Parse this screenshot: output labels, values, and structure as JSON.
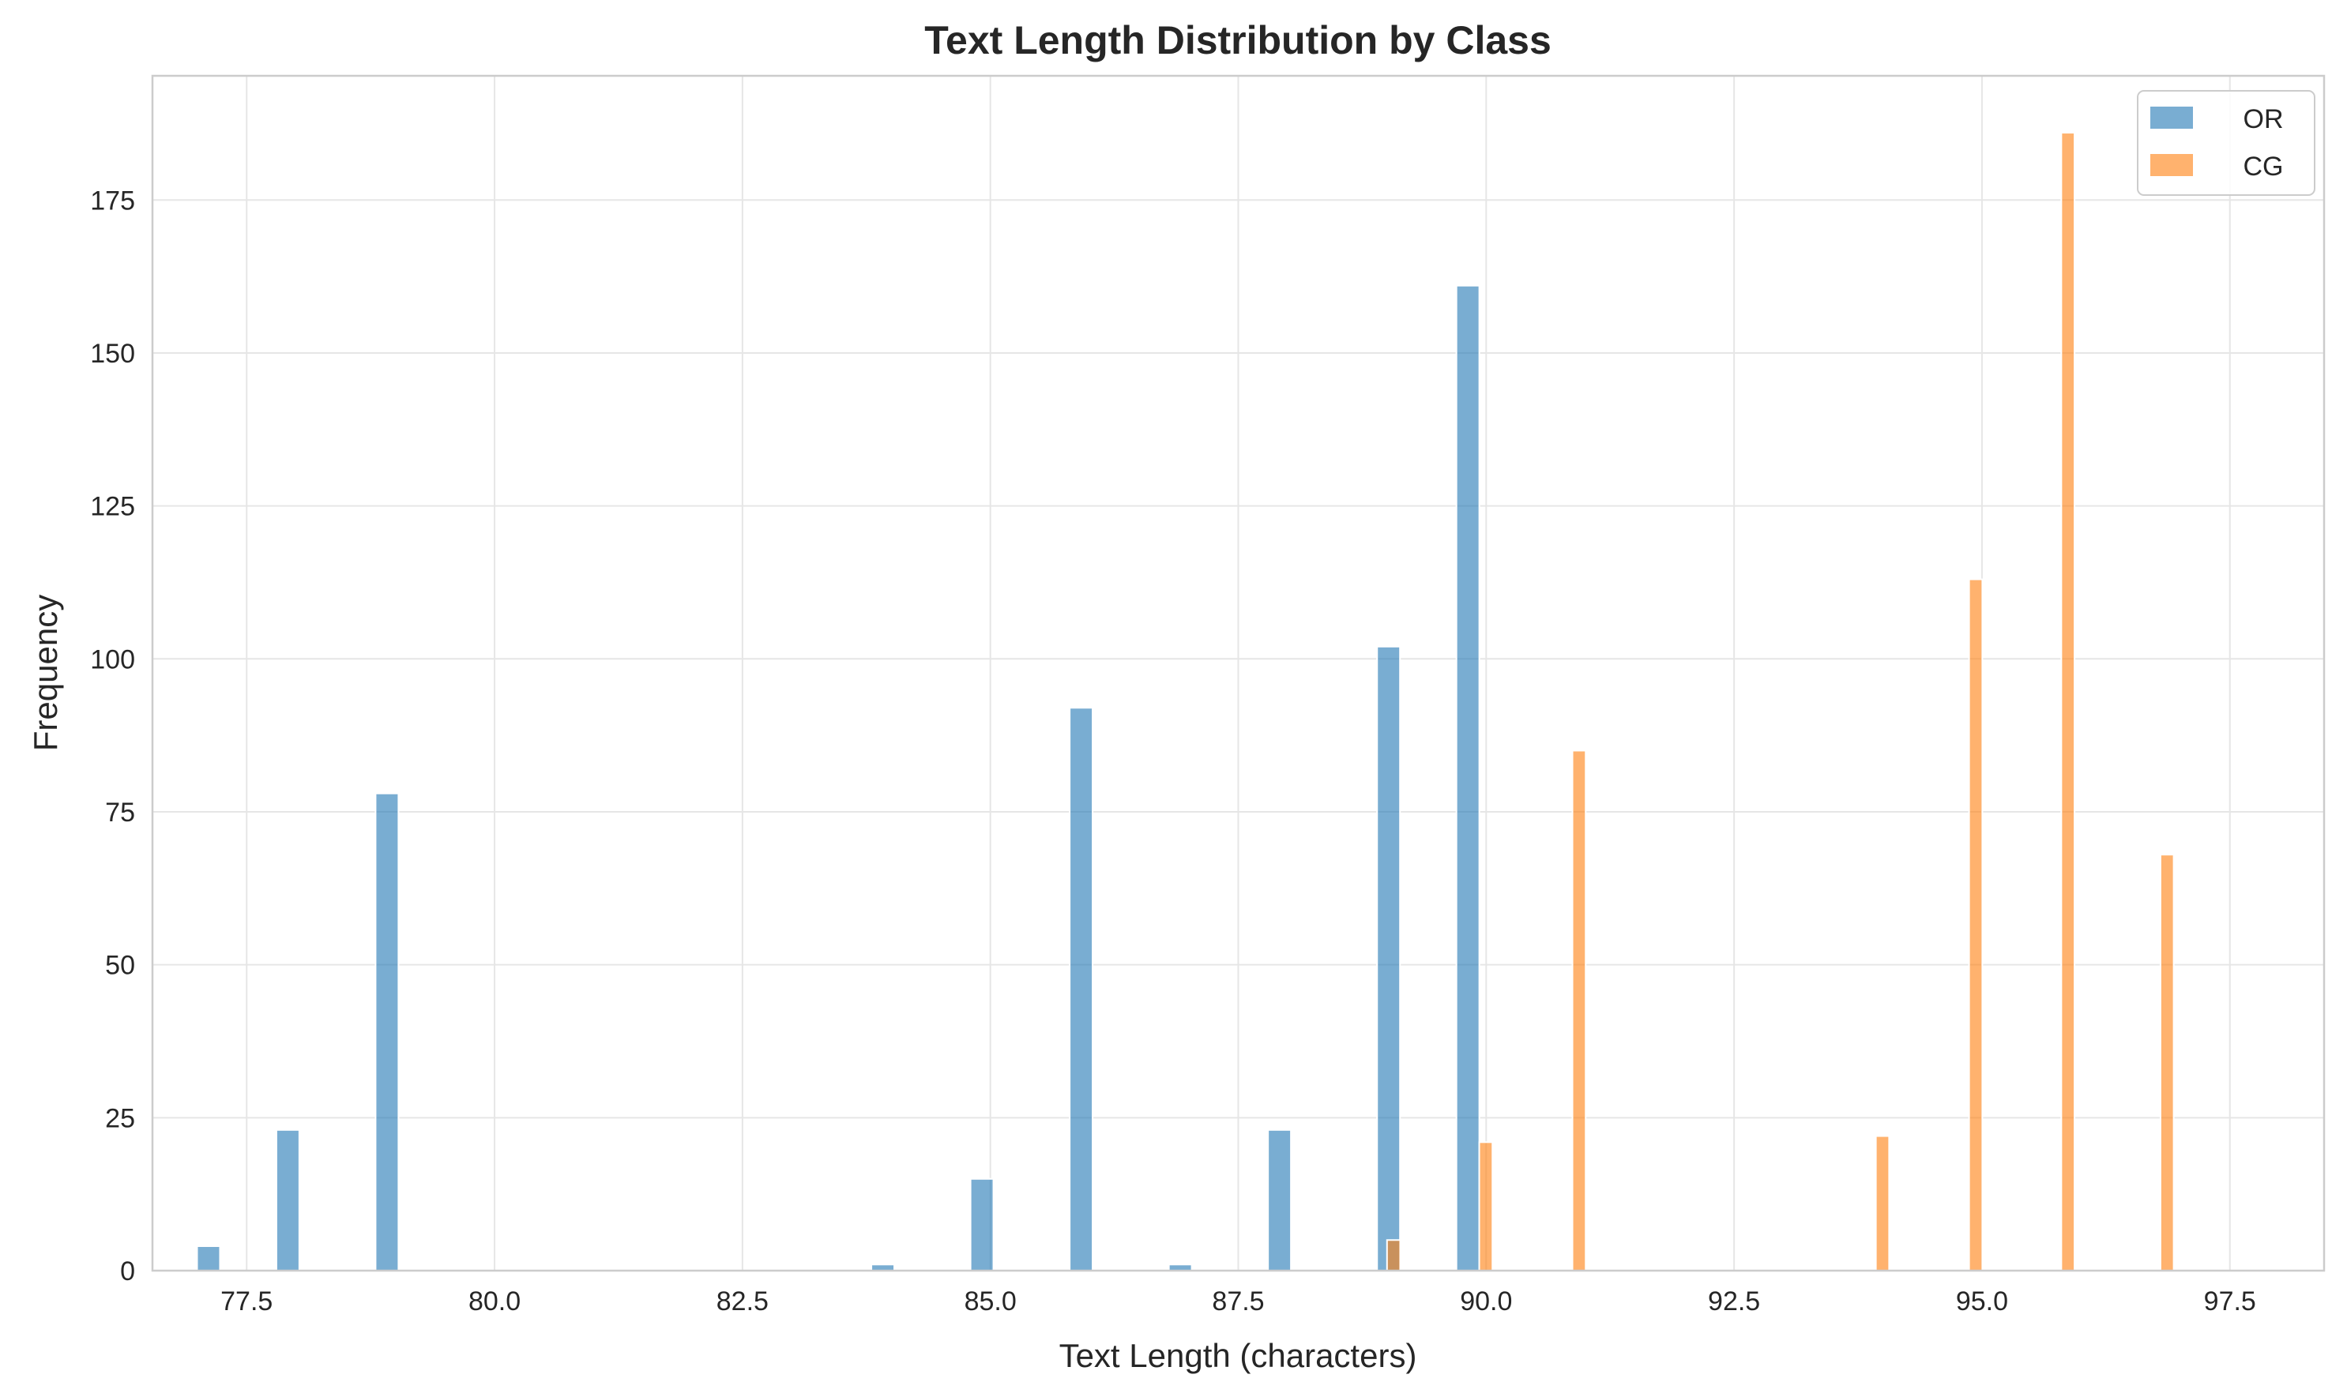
{
  "chart_data": {
    "type": "bar",
    "title": "Text Length Distribution by Class",
    "xlabel": "Text Length (characters)",
    "ylabel": "Frequency",
    "xlim": [
      76.55,
      98.45
    ],
    "ylim": [
      0,
      195.3
    ],
    "xticks": [
      77.5,
      80.0,
      82.5,
      85.0,
      87.5,
      90.0,
      92.5,
      95.0,
      97.5
    ],
    "xtick_labels": [
      "77.5",
      "80.0",
      "82.5",
      "85.0",
      "87.5",
      "90.0",
      "92.5",
      "95.0",
      "97.5"
    ],
    "yticks": [
      0,
      25,
      50,
      75,
      100,
      125,
      150,
      175
    ],
    "ytick_labels": [
      "0",
      "25",
      "50",
      "75",
      "100",
      "125",
      "150",
      "175"
    ],
    "grid": true,
    "legend_position": "top-right",
    "series": [
      {
        "name": "OR",
        "color": "#1f77b4",
        "bin_width": 0.2308,
        "x": [
          77.0,
          77.8,
          78.8,
          83.8,
          84.8,
          85.8,
          86.8,
          87.8,
          88.9,
          89.7
        ],
        "values": [
          4,
          23,
          78,
          1,
          15,
          92,
          1,
          23,
          102,
          161
        ]
      },
      {
        "name": "CG",
        "color": "#ff7f0e",
        "bin_width": 0.1333,
        "x": [
          89.0,
          89.93,
          90.87,
          93.93,
          94.87,
          95.8,
          96.8
        ],
        "values": [
          5,
          21,
          85,
          22,
          113,
          186,
          68
        ]
      }
    ]
  }
}
